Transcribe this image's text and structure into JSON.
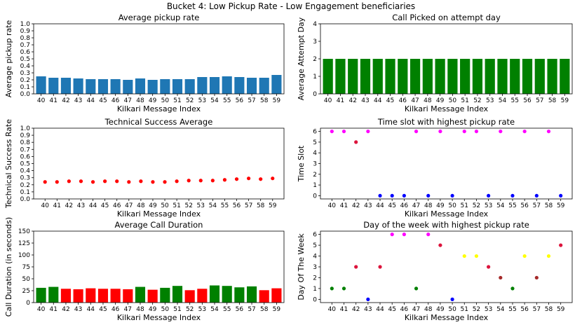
{
  "figure": {
    "suptitle": "Bucket 4: Low Pickup Rate - Low Engagement beneficiaries"
  },
  "colors": {
    "blue": "#1f77b4",
    "green": "#008000",
    "red": "#ff0000",
    "magenta": "#ff00ff",
    "navy": "#0000ff",
    "yellow": "#ffff00",
    "brown": "#a52a2a",
    "crimson": "#dc143c"
  },
  "chart_data": [
    {
      "id": "pickup",
      "type": "bar",
      "title": "Average pickup rate",
      "xlabel": "Kilkari Message Index",
      "ylabel": "Average pickup rate",
      "categories": [
        "40",
        "41",
        "42",
        "43",
        "44",
        "45",
        "46",
        "47",
        "48",
        "49",
        "50",
        "51",
        "52",
        "53",
        "54",
        "55",
        "56",
        "57",
        "58",
        "59"
      ],
      "values": [
        0.25,
        0.23,
        0.23,
        0.22,
        0.21,
        0.21,
        0.21,
        0.2,
        0.22,
        0.2,
        0.21,
        0.21,
        0.21,
        0.24,
        0.24,
        0.25,
        0.24,
        0.23,
        0.23,
        0.27
      ],
      "color_keys": [
        "blue",
        "blue",
        "blue",
        "blue",
        "blue",
        "blue",
        "blue",
        "blue",
        "blue",
        "blue",
        "blue",
        "blue",
        "blue",
        "blue",
        "blue",
        "blue",
        "blue",
        "blue",
        "blue",
        "blue"
      ],
      "ylim": [
        0,
        1.0
      ],
      "yticks": [
        "0.0",
        "0.1",
        "0.2",
        "0.3",
        "0.4",
        "0.5",
        "0.6",
        "0.7",
        "0.8",
        "0.9",
        "1.0"
      ]
    },
    {
      "id": "attempt",
      "type": "bar",
      "title": "Call Picked on attempt day",
      "xlabel": "Kilkari Message Index",
      "ylabel": "Average Attempt Day",
      "categories": [
        "40",
        "41",
        "42",
        "43",
        "44",
        "45",
        "46",
        "47",
        "48",
        "49",
        "50",
        "51",
        "52",
        "53",
        "54",
        "55",
        "56",
        "57",
        "58",
        "59"
      ],
      "values": [
        2,
        2,
        2,
        2,
        2,
        2,
        2,
        2,
        2,
        2,
        2,
        2,
        2,
        2,
        2,
        2,
        2,
        2,
        2,
        2
      ],
      "color_keys": [
        "green",
        "green",
        "green",
        "green",
        "green",
        "green",
        "green",
        "green",
        "green",
        "green",
        "green",
        "green",
        "green",
        "green",
        "green",
        "green",
        "green",
        "green",
        "green",
        "green"
      ],
      "ylim": [
        0,
        4
      ],
      "yticks": [
        "0",
        "1",
        "2",
        "3",
        "4"
      ]
    },
    {
      "id": "tech",
      "type": "scatter",
      "title": "Technical Success Average",
      "xlabel": "Kilkari Message Index",
      "ylabel": "Technical Success Rate",
      "categories": [
        "40",
        "41",
        "42",
        "43",
        "44",
        "45",
        "46",
        "47",
        "48",
        "49",
        "50",
        "51",
        "52",
        "53",
        "54",
        "55",
        "56",
        "57",
        "58",
        "59"
      ],
      "values": [
        0.24,
        0.24,
        0.25,
        0.25,
        0.24,
        0.25,
        0.25,
        0.24,
        0.25,
        0.24,
        0.24,
        0.25,
        0.26,
        0.26,
        0.26,
        0.27,
        0.28,
        0.29,
        0.28,
        0.29
      ],
      "color_keys": [
        "red",
        "red",
        "red",
        "red",
        "red",
        "red",
        "red",
        "red",
        "red",
        "red",
        "red",
        "red",
        "red",
        "red",
        "red",
        "red",
        "red",
        "red",
        "red",
        "red"
      ],
      "ylim": [
        0,
        1.0
      ],
      "yticks": [
        "0.0",
        "0.1",
        "0.2",
        "0.3",
        "0.4",
        "0.5",
        "0.6",
        "0.7",
        "0.8",
        "0.9",
        "1.0"
      ]
    },
    {
      "id": "timeslot",
      "type": "scatter",
      "title": "Time slot with highest pickup rate",
      "xlabel": "Kilkari Message Index",
      "ylabel": "Time Slot",
      "categories": [
        "40",
        "41",
        "42",
        "43",
        "44",
        "45",
        "46",
        "47",
        "48",
        "49",
        "50",
        "51",
        "52",
        "53",
        "54",
        "55",
        "56",
        "57",
        "58",
        "59"
      ],
      "values": [
        6,
        6,
        5,
        6,
        0,
        0,
        0,
        6,
        0,
        6,
        0,
        6,
        6,
        0,
        6,
        0,
        6,
        0,
        6,
        0
      ],
      "color_keys": [
        "magenta",
        "magenta",
        "crimson",
        "magenta",
        "navy",
        "navy",
        "navy",
        "magenta",
        "navy",
        "magenta",
        "navy",
        "magenta",
        "magenta",
        "navy",
        "magenta",
        "navy",
        "magenta",
        "navy",
        "magenta",
        "navy"
      ],
      "ylim": [
        -0.3,
        6.3
      ],
      "yticks": [
        "0",
        "1",
        "2",
        "3",
        "4",
        "5",
        "6"
      ]
    },
    {
      "id": "duration",
      "type": "bar",
      "title": "Average Call Duration",
      "xlabel": "Kilkari Message Index",
      "ylabel": "Call Duration (in seconds)",
      "categories": [
        "40",
        "41",
        "42",
        "43",
        "44",
        "45",
        "46",
        "47",
        "48",
        "49",
        "50",
        "51",
        "52",
        "53",
        "54",
        "55",
        "56",
        "57",
        "58",
        "59"
      ],
      "values": [
        31,
        33,
        29,
        28,
        30,
        29,
        29,
        28,
        33,
        27,
        31,
        35,
        26,
        29,
        36,
        35,
        32,
        34,
        26,
        30
      ],
      "color_keys": [
        "green",
        "green",
        "red",
        "red",
        "red",
        "red",
        "red",
        "red",
        "green",
        "red",
        "green",
        "green",
        "red",
        "red",
        "green",
        "green",
        "green",
        "green",
        "red",
        "red"
      ],
      "ylim": [
        0,
        150
      ],
      "yticks": [
        "0",
        "25",
        "50",
        "75",
        "100",
        "125",
        "150"
      ]
    },
    {
      "id": "dow",
      "type": "scatter",
      "title": "Day of the week with highest pickup rate",
      "xlabel": "Kilkari Message Index",
      "ylabel": "Day Of The Week",
      "categories": [
        "40",
        "41",
        "42",
        "43",
        "44",
        "45",
        "46",
        "47",
        "48",
        "49",
        "50",
        "51",
        "52",
        "53",
        "54",
        "55",
        "56",
        "57",
        "58",
        "59"
      ],
      "values": [
        1,
        1,
        3,
        0,
        3,
        6,
        6,
        1,
        6,
        5,
        0,
        4,
        4,
        3,
        2,
        1,
        4,
        2,
        4,
        5
      ],
      "color_keys": [
        "green",
        "green",
        "crimson",
        "navy",
        "crimson",
        "magenta",
        "magenta",
        "green",
        "magenta",
        "crimson",
        "navy",
        "yellow",
        "yellow",
        "crimson",
        "brown",
        "green",
        "yellow",
        "brown",
        "yellow",
        "crimson"
      ],
      "ylim": [
        -0.3,
        6.3
      ],
      "yticks": [
        "0",
        "1",
        "2",
        "3",
        "4",
        "5",
        "6"
      ]
    }
  ]
}
